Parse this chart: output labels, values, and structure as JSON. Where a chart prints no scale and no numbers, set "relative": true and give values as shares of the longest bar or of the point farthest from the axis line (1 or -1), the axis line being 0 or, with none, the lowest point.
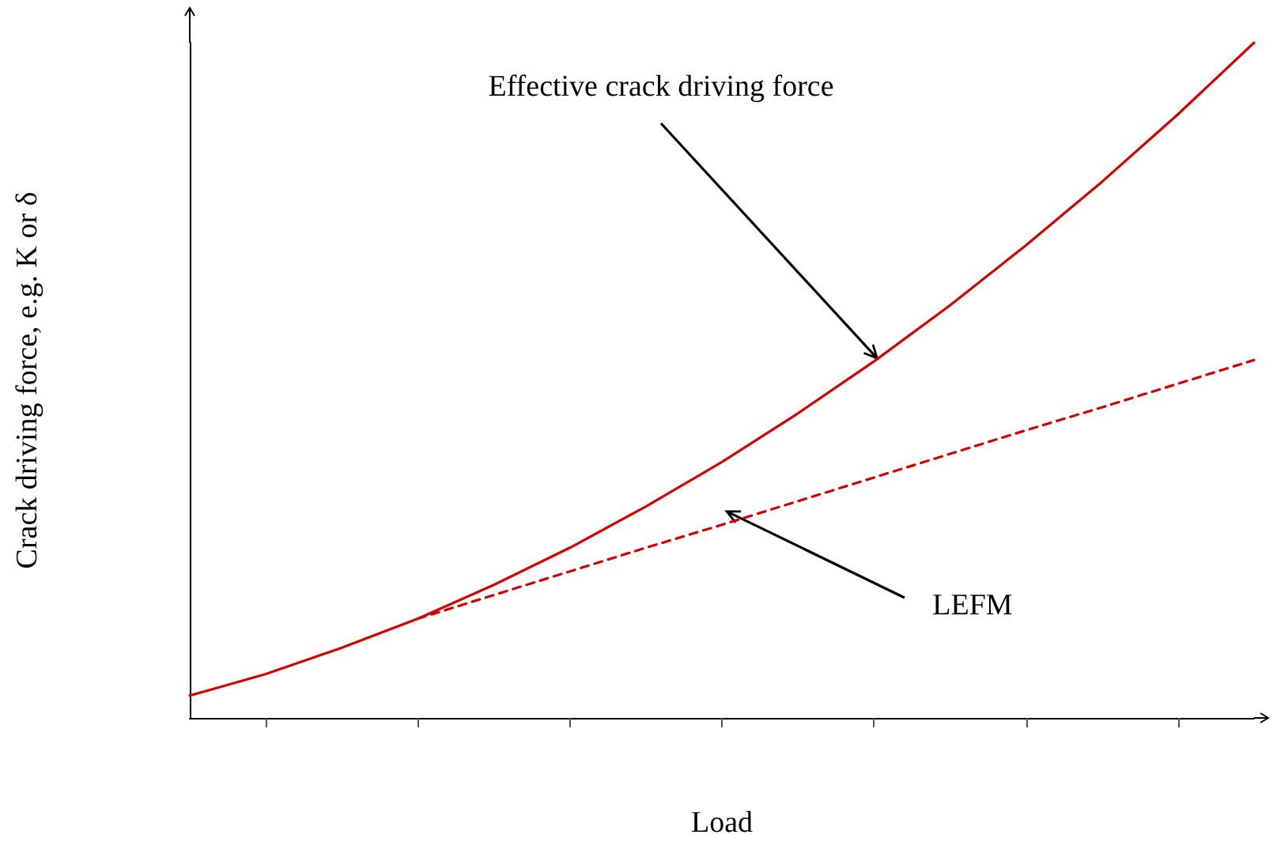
{
  "chart_data": {
    "type": "line",
    "relative": true,
    "xlabel": "Load",
    "ylabel": "Crack driving force, e.g. K or δ",
    "categories": [
      null,
      null,
      null,
      null,
      null,
      null,
      null,
      null,
      null,
      null,
      null,
      null,
      null,
      null,
      null
    ],
    "series": [
      {
        "color": "#d40000",
        "line_style": "solid",
        "values": [
          0.033,
          0.065,
          0.104,
          0.147,
          0.197,
          0.252,
          0.313,
          0.379,
          0.451,
          0.528,
          0.611,
          0.7,
          0.794,
          0.894,
          1
        ]
      },
      {
        "color": "#d40000",
        "line_style": "dashed",
        "values": [
          null,
          null,
          null,
          0.147,
          0.182,
          0.217,
          0.252,
          0.286,
          0.321,
          0.356,
          0.391,
          0.426,
          0.46,
          0.495,
          0.53
        ]
      }
    ],
    "annotations": [
      "Effective crack driving force",
      "LEFM"
    ],
    "marker": "none",
    "grid": false
  }
}
